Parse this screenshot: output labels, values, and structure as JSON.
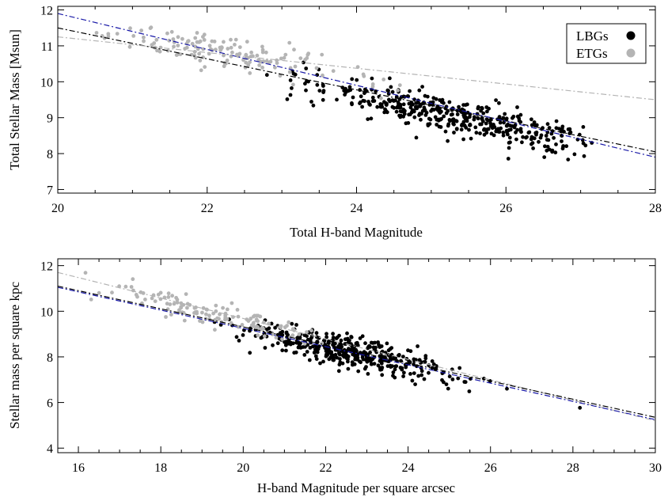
{
  "chart_data": [
    {
      "type": "scatter",
      "title": "",
      "xlabel": "Total H-band Magnitude",
      "ylabel": "Total Stellar Mass [Msun]",
      "xlim": [
        20,
        28
      ],
      "ylim": [
        6.9,
        12.1
      ],
      "xticks": [
        20,
        22,
        24,
        26,
        28
      ],
      "yticks": [
        7,
        8,
        9,
        10,
        11,
        12
      ],
      "legend": {
        "placement": "top-right",
        "entries": [
          {
            "label": "LBGs",
            "color": "#000000"
          },
          {
            "label": "ETGs",
            "color": "#b4b4b4"
          }
        ]
      },
      "series": [
        {
          "name": "LBGs",
          "color": "#000000",
          "generated": {
            "count": 430,
            "xmin": 22.8,
            "xmax": 27.3,
            "x_center": 25.4,
            "x_spread": 0.9,
            "slope": -0.44,
            "intercept": 20.2,
            "scatter": 0.28,
            "seed": 11
          }
        },
        {
          "name": "ETGs",
          "color": "#b4b4b4",
          "generated": {
            "count": 150,
            "xmin": 20.5,
            "xmax": 24.8,
            "x_center": 22.2,
            "x_spread": 0.9,
            "slope": -0.32,
            "intercept": 17.9,
            "scatter": 0.22,
            "seed": 29
          }
        }
      ],
      "fit_lines": [
        {
          "color": "#000000",
          "style": "dash-dot",
          "x": [
            20,
            28
          ],
          "y": [
            11.5,
            8.05
          ]
        },
        {
          "color": "#1a1aa8",
          "style": "dash-dot",
          "x": [
            20,
            28
          ],
          "y": [
            11.9,
            7.9
          ]
        },
        {
          "color": "#b4b4b4",
          "style": "dash-dot",
          "x": [
            20,
            28
          ],
          "y": [
            11.25,
            9.5
          ]
        }
      ]
    },
    {
      "type": "scatter",
      "title": "",
      "xlabel": "H-band Magnitude per square arcsec",
      "ylabel": "Stellar mass per square kpc",
      "xlim": [
        15.5,
        30
      ],
      "ylim": [
        3.8,
        12.3
      ],
      "xticks": [
        16,
        18,
        20,
        22,
        24,
        26,
        28,
        30
      ],
      "yticks": [
        4,
        6,
        8,
        10,
        12
      ],
      "series": [
        {
          "name": "LBGs",
          "color": "#000000",
          "generated": {
            "count": 420,
            "xmin": 19.2,
            "xmax": 29.7,
            "x_center": 22.6,
            "x_spread": 1.3,
            "slope": -0.4,
            "intercept": 17.25,
            "scatter": 0.35,
            "seed": 43
          }
        },
        {
          "name": "ETGs",
          "color": "#b4b4b4",
          "generated": {
            "count": 130,
            "xmin": 15.7,
            "xmax": 23.6,
            "x_center": 19.3,
            "x_spread": 1.4,
            "slope": -0.43,
            "intercept": 18.15,
            "scatter": 0.3,
            "seed": 71
          }
        }
      ],
      "fit_lines": [
        {
          "color": "#b4b4b4",
          "style": "dash-dot",
          "x": [
            15.5,
            30
          ],
          "y": [
            11.7,
            5.2
          ]
        },
        {
          "color": "#000000",
          "style": "dash-dot",
          "x": [
            15.5,
            30
          ],
          "y": [
            11.1,
            5.35
          ]
        },
        {
          "color": "#1a1aa8",
          "style": "dash-dot",
          "x": [
            15.5,
            30
          ],
          "y": [
            11.05,
            5.25
          ]
        }
      ]
    }
  ]
}
